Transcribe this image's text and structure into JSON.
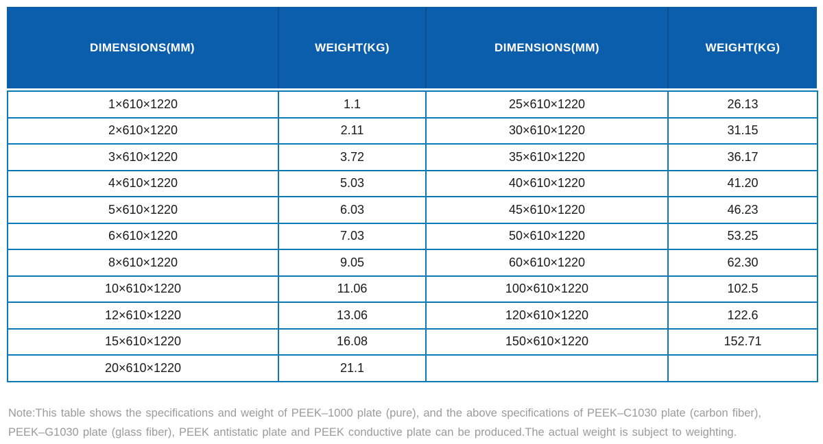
{
  "table": {
    "headers": [
      "DIMENSIONS(MM)",
      "WEIGHT(KG)",
      "DIMENSIONS(MM)",
      "WEIGHT(KG)"
    ],
    "rows": [
      [
        "1×610×1220",
        "1.1",
        "25×610×1220",
        "26.13"
      ],
      [
        "2×610×1220",
        "2.11",
        "30×610×1220",
        "31.15"
      ],
      [
        "3×610×1220",
        "3.72",
        "35×610×1220",
        "36.17"
      ],
      [
        "4×610×1220",
        "5.03",
        "40×610×1220",
        "41.20"
      ],
      [
        "5×610×1220",
        "6.03",
        "45×610×1220",
        "46.23"
      ],
      [
        "6×610×1220",
        "7.03",
        "50×610×1220",
        "53.25"
      ],
      [
        "8×610×1220",
        "9.05",
        "60×610×1220",
        "62.30"
      ],
      [
        "10×610×1220",
        "11.06",
        "100×610×1220",
        "102.5"
      ],
      [
        "12×610×1220",
        "13.06",
        "120×610×1220",
        "122.6"
      ],
      [
        "15×610×1220",
        "16.08",
        "150×610×1220",
        "152.71"
      ],
      [
        "20×610×1220",
        "21.1",
        "",
        ""
      ]
    ]
  },
  "note": {
    "line1": "Note:This table shows the specifications and weight of PEEK–1000 plate (pure), and the above specifications of PEEK–C1030 plate (carbon fiber),",
    "line2": "PEEK–G1030 plate (glass fiber), PEEK antistatic plate and PEEK conductive plate can be produced.The actual weight is subject to weighting."
  },
  "colors": {
    "header_background": "#0B5EAB",
    "header_divider": "#084E91",
    "grid_border": "#0979B9",
    "body_text": "#1A1A1A",
    "note_text": "#9B9B9B"
  }
}
